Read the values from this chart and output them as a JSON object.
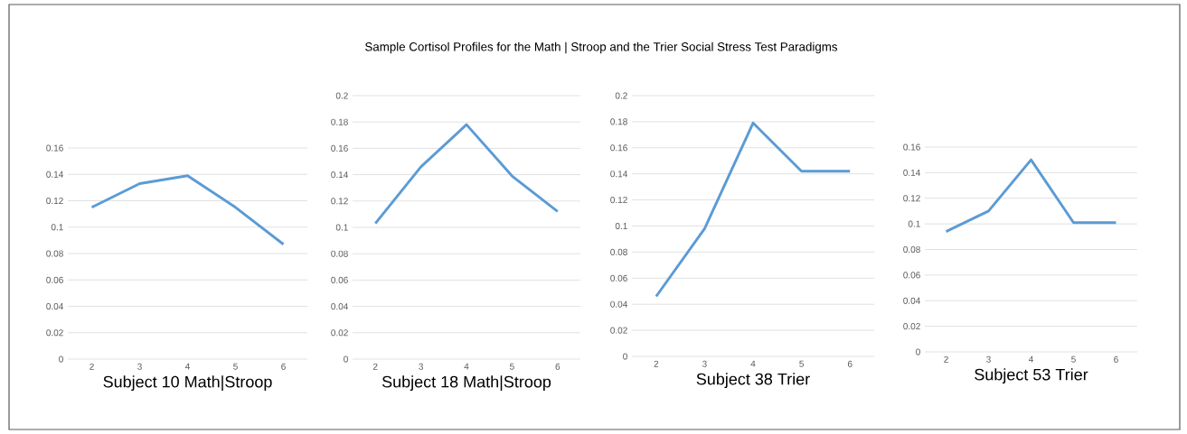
{
  "chart_data": [
    {
      "type": "line",
      "xlabel": "Subject 10 Math|Stroop",
      "categories": [
        "2",
        "3",
        "4",
        "5",
        "6"
      ],
      "values": [
        0.115,
        0.133,
        0.139,
        0.115,
        0.087
      ],
      "color": "#5b9bd5",
      "ylim": [
        0,
        0.16
      ],
      "yticks": [
        0,
        0.02,
        0.04,
        0.06,
        0.08,
        0.1,
        0.12,
        0.14,
        0.16
      ],
      "grid": "y"
    },
    {
      "type": "line",
      "title": "Sample Cortisol Profiles for the Math | Stroop and the Trier Social Stress Test Paradigms",
      "xlabel": "Subject 18 Math|Stroop",
      "categories": [
        "2",
        "3",
        "4",
        "5",
        "6"
      ],
      "values": [
        0.103,
        0.146,
        0.178,
        0.139,
        0.112
      ],
      "color": "#5b9bd5",
      "ylim": [
        0,
        0.2
      ],
      "yticks": [
        0,
        0.02,
        0.04,
        0.06,
        0.08,
        0.1,
        0.12,
        0.14,
        0.16,
        0.18,
        0.2
      ],
      "grid": "y"
    },
    {
      "type": "line",
      "xlabel": "Subject 38 Trier",
      "categories": [
        "2",
        "3",
        "4",
        "5",
        "6"
      ],
      "values": [
        0.046,
        0.098,
        0.179,
        0.142,
        0.142
      ],
      "color": "#5b9bd5",
      "ylim": [
        0,
        0.2
      ],
      "yticks": [
        0,
        0.02,
        0.04,
        0.06,
        0.08,
        0.1,
        0.12,
        0.14,
        0.16,
        0.18,
        0.2
      ],
      "grid": "y"
    },
    {
      "type": "line",
      "xlabel": "Subject 53 Trier",
      "categories": [
        "2",
        "3",
        "4",
        "5",
        "6"
      ],
      "values": [
        0.094,
        0.11,
        0.15,
        0.101,
        0.101
      ],
      "color": "#5b9bd5",
      "ylim": [
        0,
        0.16
      ],
      "yticks": [
        0,
        0.02,
        0.04,
        0.06,
        0.08,
        0.1,
        0.12,
        0.14,
        0.16
      ],
      "grid": "y"
    }
  ]
}
